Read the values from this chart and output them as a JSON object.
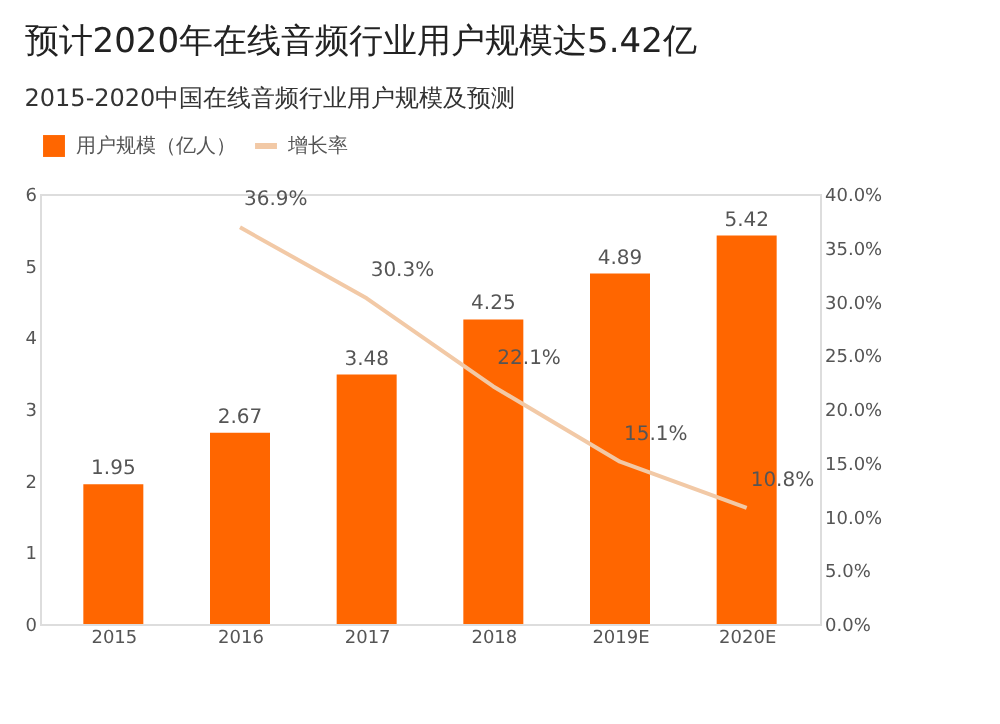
{
  "chart_data": {
    "type": "bar",
    "title": "预计2020年在线音频行业用户规模达5.42亿",
    "subtitle": "2015-2020中国在线音频行业用户规模及预测",
    "categories": [
      "2015",
      "2016",
      "2017",
      "2018",
      "2019E",
      "2020E"
    ],
    "series": [
      {
        "name": "用户规模（亿人）",
        "color": "#ff6600",
        "values": [
          1.95,
          2.67,
          3.48,
          4.25,
          4.89,
          5.42
        ]
      },
      {
        "name": "增长率",
        "type": "line",
        "axis": "y2",
        "color": "#f2c9a6",
        "values": [
          null,
          36.9,
          30.3,
          22.1,
          15.1,
          10.8
        ],
        "value_labels": [
          null,
          "36.9%",
          "30.3%",
          "22.1%",
          "15.1%",
          "10.8%"
        ]
      }
    ],
    "data_labels": true,
    "ylim": [
      0,
      6
    ],
    "yticks": [
      0,
      1,
      2,
      3,
      4,
      5,
      6
    ],
    "y2lim": [
      0,
      40
    ],
    "y2ticks": [
      {
        "value": 0,
        "label": "0.0%"
      },
      {
        "value": 5,
        "label": "5.0%"
      },
      {
        "value": 10,
        "label": "10.0%"
      },
      {
        "value": 15,
        "label": "15.0%"
      },
      {
        "value": 20,
        "label": "20.0%"
      },
      {
        "value": 25,
        "label": "25.0%"
      },
      {
        "value": 30,
        "label": "30.0%"
      },
      {
        "value": 35,
        "label": "35.0%"
      },
      {
        "value": 40,
        "label": "40.0%"
      }
    ],
    "legend": "top",
    "grid": false,
    "marker": "none"
  }
}
